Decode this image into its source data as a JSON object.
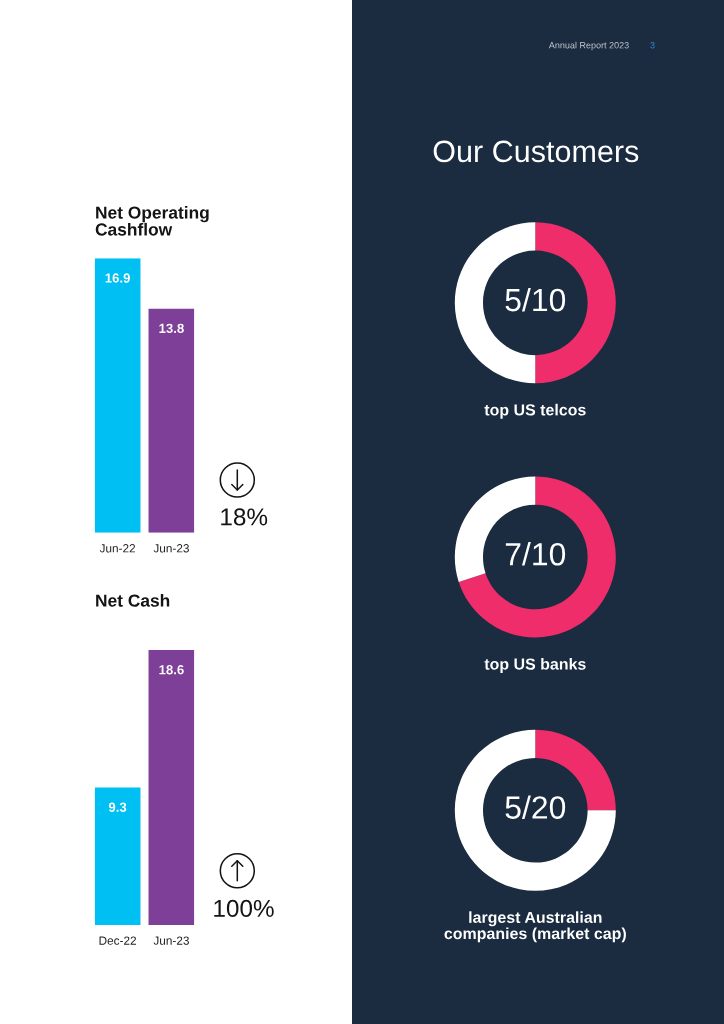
{
  "chart_data": [
    {
      "type": "bar",
      "title": "Net Operating Cashflow",
      "categories": [
        "Jun-22",
        "Jun-23"
      ],
      "values": [
        16.9,
        13.8
      ],
      "colors": [
        "#00bff3",
        "#7d3f98"
      ],
      "data_labels": true,
      "tick_labels": "x",
      "annotations": [
        "18%"
      ]
    },
    {
      "type": "bar",
      "title": "Net Cash",
      "categories": [
        "Dec-22",
        "Jun-23"
      ],
      "values": [
        9.3,
        18.6
      ],
      "colors": [
        "#00bff3",
        "#7d3f98"
      ],
      "data_labels": true,
      "tick_labels": "x",
      "annotations": [
        "100%"
      ]
    },
    {
      "type": "other",
      "title": "Our Customers",
      "annotations": [
        "Annual Report 2023",
        "3"
      ]
    },
    {
      "type": "donut",
      "title": "top US telcos",
      "categories": [
        null,
        null
      ],
      "values": [
        50,
        50
      ],
      "colors": [
        "#ef2d6b",
        "#ffffff"
      ],
      "annotations": [
        "5/10"
      ]
    },
    {
      "type": "donut",
      "title": "top US banks",
      "categories": [
        null,
        null
      ],
      "values": [
        70,
        30
      ],
      "colors": [
        "#ef2d6b",
        "#ffffff"
      ],
      "annotations": [
        "7/10"
      ]
    },
    {
      "type": "donut",
      "title": "largest Australian companies (market cap)",
      "categories": [
        null,
        null
      ],
      "values": [
        25,
        75
      ],
      "colors": [
        "#ef2d6b",
        "#ffffff"
      ],
      "annotations": [
        "5/20"
      ]
    }
  ]
}
